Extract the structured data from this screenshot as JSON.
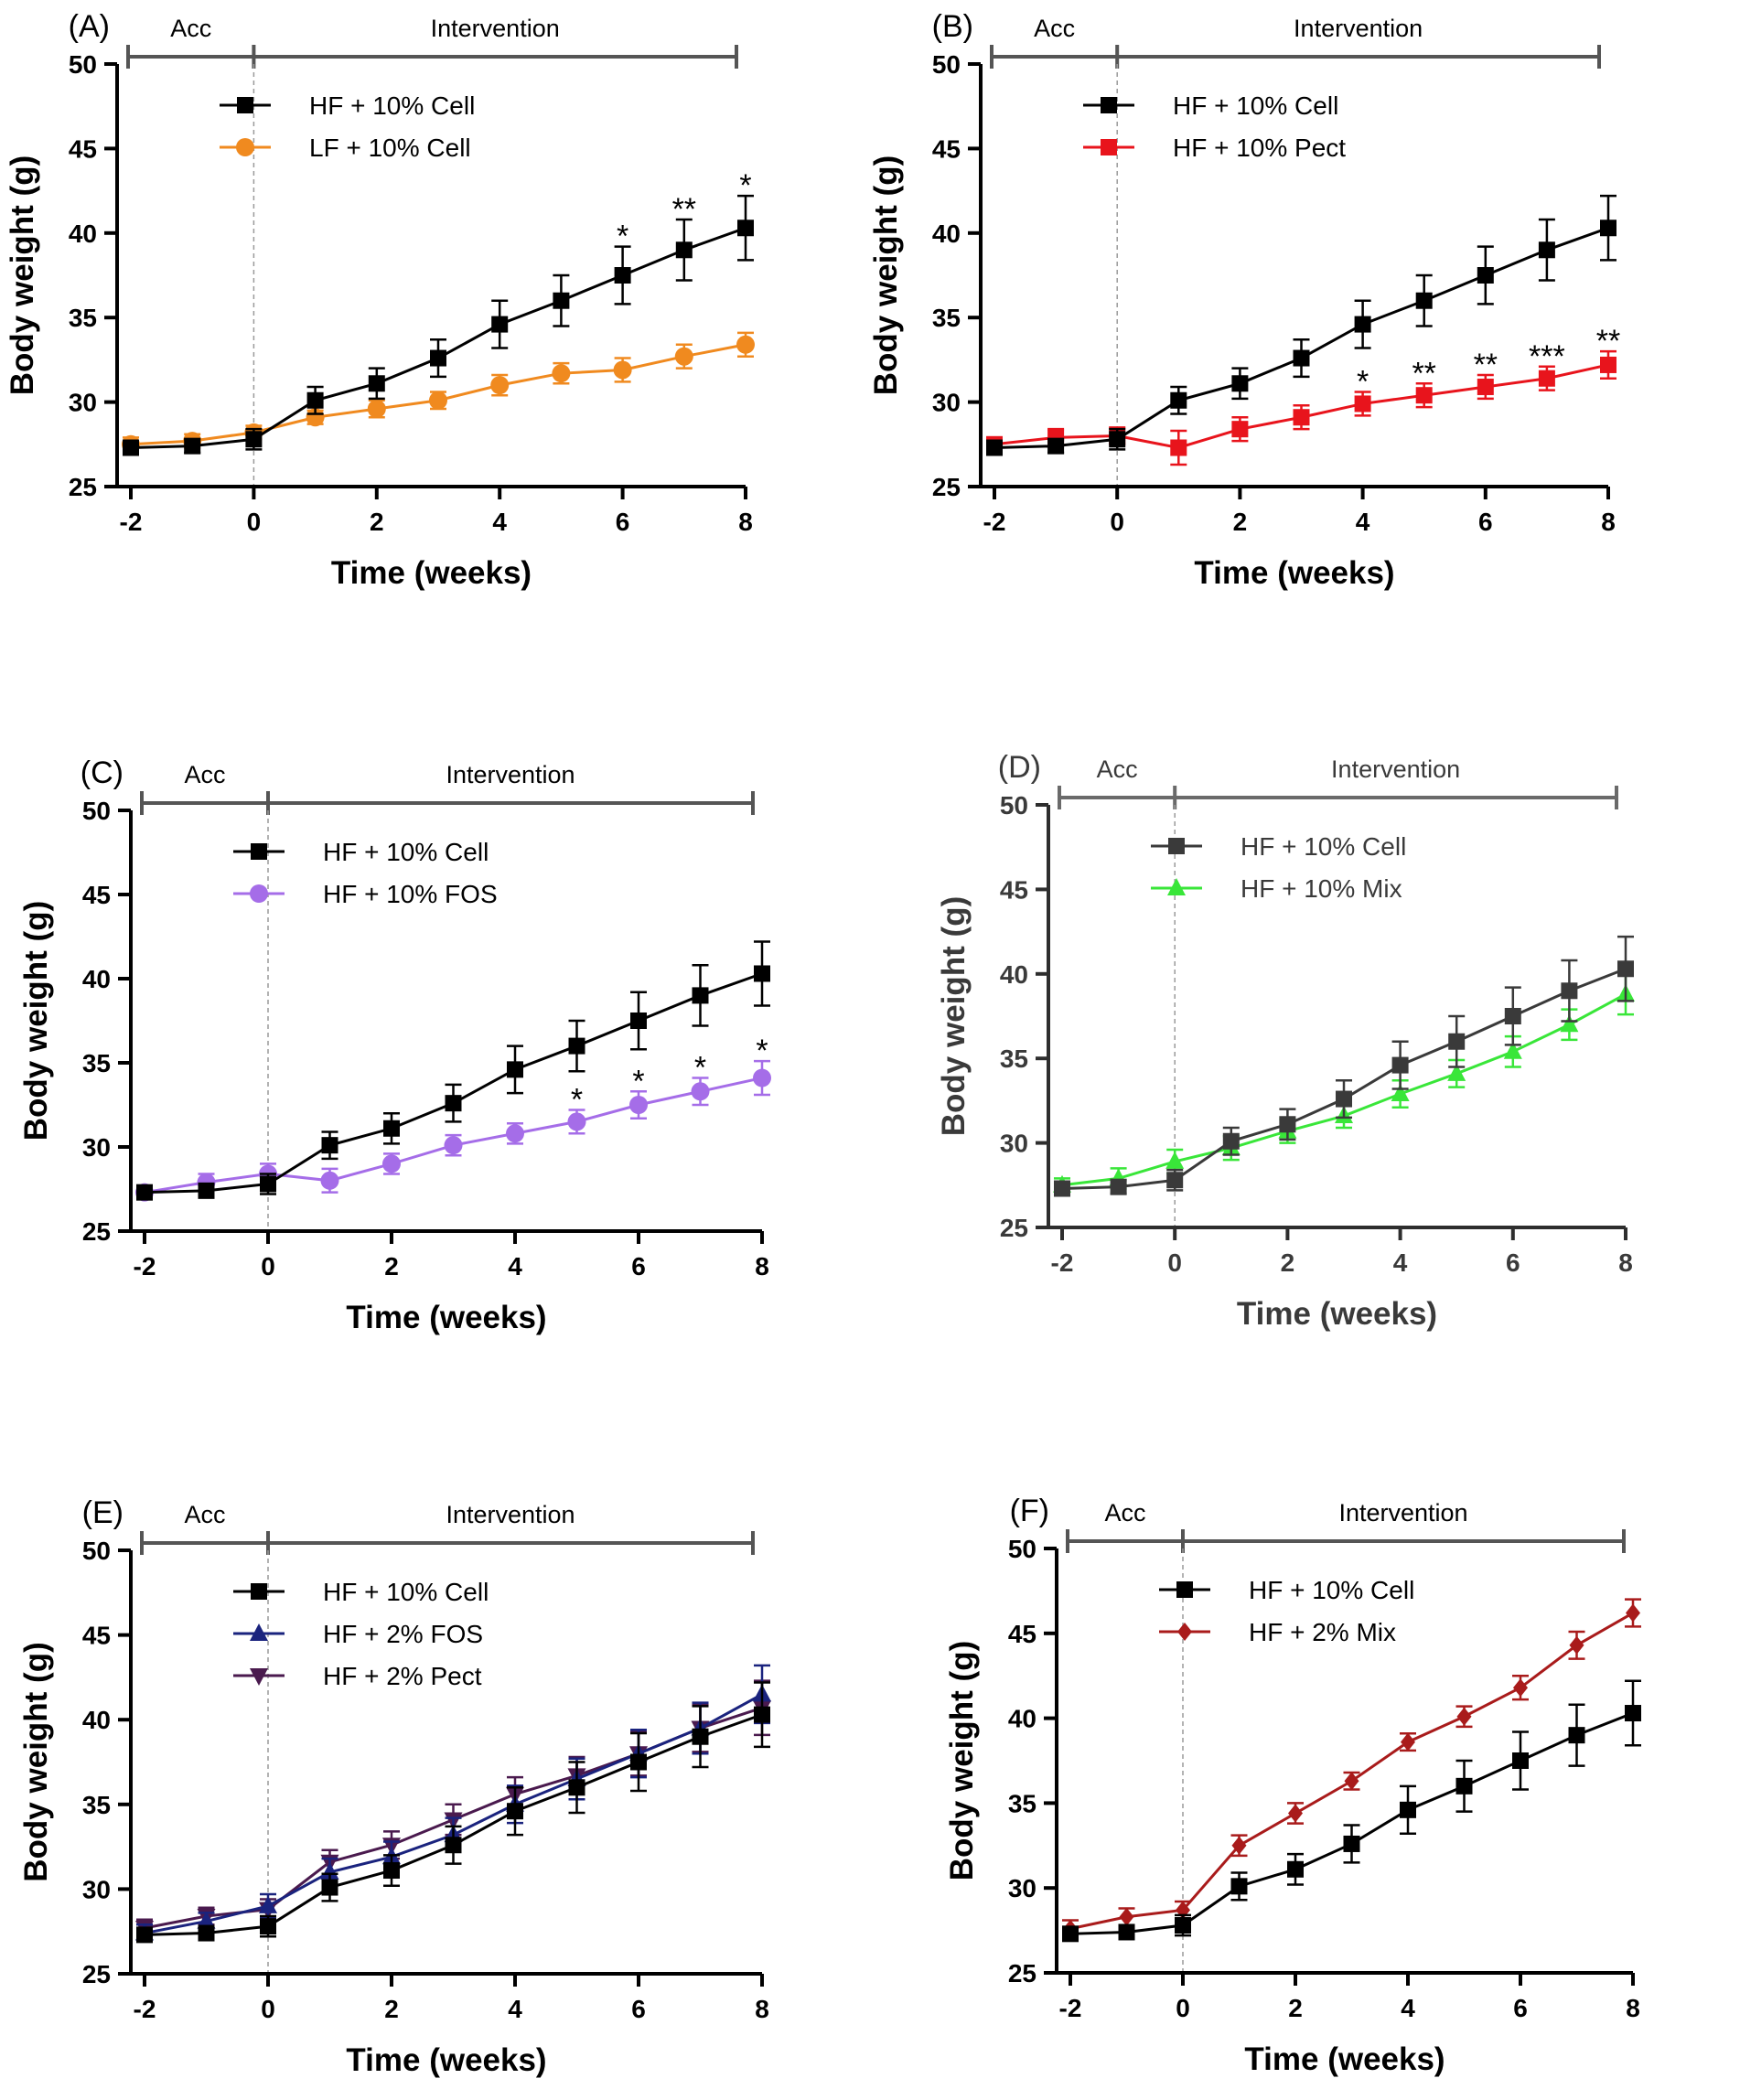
{
  "figure": {
    "x_ticks": [
      -2,
      0,
      2,
      4,
      6,
      8
    ],
    "y_ticks": [
      25,
      30,
      35,
      40,
      45,
      50
    ],
    "xlim": [
      -2,
      8
    ],
    "ylim": [
      25,
      50
    ],
    "acc_label": "Acc",
    "intervention_label": "Intervention",
    "xlabel": "Time (weeks)",
    "ylabel": "Body weight (g)"
  },
  "chart_data": [
    {
      "type": "line",
      "panel_label": "(A)",
      "title": "",
      "xlabel": "Time (weeks)",
      "ylabel": "Body weight (g)",
      "xlim": [
        -2,
        8
      ],
      "ylim": [
        25,
        50
      ],
      "highlighted": false,
      "x": [
        -2,
        -1,
        0,
        1,
        2,
        3,
        4,
        5,
        6,
        7,
        8
      ],
      "series": [
        {
          "name": "HF + 10% Cell",
          "color": "#000000",
          "marker": "square",
          "values": [
            27.3,
            27.4,
            27.8,
            30.1,
            31.1,
            32.6,
            34.6,
            36.0,
            37.5,
            39.0,
            40.3
          ],
          "errors": [
            0.4,
            0.4,
            0.6,
            0.8,
            0.9,
            1.1,
            1.4,
            1.5,
            1.7,
            1.8,
            1.9
          ]
        },
        {
          "name": "LF + 10% Cell",
          "color": "#f08a1f",
          "marker": "circle",
          "values": [
            27.5,
            27.7,
            28.2,
            29.1,
            29.6,
            30.1,
            31.0,
            31.7,
            31.9,
            32.7,
            33.4
          ],
          "errors": [
            0.4,
            0.4,
            0.4,
            0.4,
            0.5,
            0.5,
            0.6,
            0.6,
            0.7,
            0.7,
            0.7
          ]
        }
      ],
      "annotations": [
        {
          "x": 6,
          "text": "*"
        },
        {
          "x": 7,
          "text": "**"
        },
        {
          "x": 8,
          "text": "*"
        }
      ]
    },
    {
      "type": "line",
      "panel_label": "(B)",
      "title": "",
      "xlabel": "Time (weeks)",
      "ylabel": "Body weight (g)",
      "xlim": [
        -2,
        8
      ],
      "ylim": [
        25,
        50
      ],
      "highlighted": false,
      "x": [
        -2,
        -1,
        0,
        1,
        2,
        3,
        4,
        5,
        6,
        7,
        8
      ],
      "series": [
        {
          "name": "HF + 10% Cell",
          "color": "#000000",
          "marker": "square",
          "values": [
            27.3,
            27.4,
            27.8,
            30.1,
            31.1,
            32.6,
            34.6,
            36.0,
            37.5,
            39.0,
            40.3
          ],
          "errors": [
            0.4,
            0.4,
            0.6,
            0.8,
            0.9,
            1.1,
            1.4,
            1.5,
            1.7,
            1.8,
            1.9
          ]
        },
        {
          "name": "HF + 10% Pect",
          "color": "#e8141c",
          "marker": "square",
          "values": [
            27.5,
            27.9,
            28.0,
            27.3,
            28.4,
            29.1,
            29.9,
            30.4,
            30.9,
            31.4,
            32.2
          ],
          "errors": [
            0.4,
            0.5,
            0.5,
            1.0,
            0.7,
            0.7,
            0.7,
            0.7,
            0.7,
            0.7,
            0.8
          ]
        }
      ],
      "annotations": [
        {
          "x": 4,
          "text": "*"
        },
        {
          "x": 5,
          "text": "**"
        },
        {
          "x": 6,
          "text": "**"
        },
        {
          "x": 7,
          "text": "***"
        },
        {
          "x": 8,
          "text": "**"
        }
      ]
    },
    {
      "type": "line",
      "panel_label": "(C)",
      "title": "",
      "xlabel": "Time (weeks)",
      "ylabel": "Body weight (g)",
      "xlim": [
        -2,
        8
      ],
      "ylim": [
        25,
        50
      ],
      "highlighted": false,
      "x": [
        -2,
        -1,
        0,
        1,
        2,
        3,
        4,
        5,
        6,
        7,
        8
      ],
      "series": [
        {
          "name": "HF + 10% Cell",
          "color": "#000000",
          "marker": "square",
          "values": [
            27.3,
            27.4,
            27.8,
            30.1,
            31.1,
            32.6,
            34.6,
            36.0,
            37.5,
            39.0,
            40.3
          ],
          "errors": [
            0.4,
            0.4,
            0.6,
            0.8,
            0.9,
            1.1,
            1.4,
            1.5,
            1.7,
            1.8,
            1.9
          ]
        },
        {
          "name": "HF + 10% FOS",
          "color": "#a56de8",
          "marker": "circle",
          "values": [
            27.3,
            27.9,
            28.4,
            28.0,
            29.0,
            30.1,
            30.8,
            31.5,
            32.5,
            33.3,
            34.1
          ],
          "errors": [
            0.4,
            0.5,
            0.6,
            0.7,
            0.6,
            0.6,
            0.6,
            0.7,
            0.8,
            0.8,
            1.0
          ]
        }
      ],
      "annotations": [
        {
          "x": 5,
          "text": "*"
        },
        {
          "x": 6,
          "text": "*"
        },
        {
          "x": 7,
          "text": "*"
        },
        {
          "x": 8,
          "text": "*"
        }
      ]
    },
    {
      "type": "line",
      "panel_label": "(D)",
      "title": "",
      "xlabel": "Time (weeks)",
      "ylabel": "Body weight (g)",
      "xlim": [
        -2,
        8
      ],
      "ylim": [
        25,
        50
      ],
      "highlighted": true,
      "x": [
        -2,
        -1,
        0,
        1,
        2,
        3,
        4,
        5,
        6,
        7,
        8
      ],
      "series": [
        {
          "name": "HF + 10% Cell",
          "color": "#3a3a3a",
          "marker": "square",
          "values": [
            27.3,
            27.4,
            27.8,
            30.1,
            31.1,
            32.6,
            34.6,
            36.0,
            37.5,
            39.0,
            40.3
          ],
          "errors": [
            0.4,
            0.4,
            0.6,
            0.8,
            0.9,
            1.1,
            1.4,
            1.5,
            1.7,
            1.8,
            1.9
          ]
        },
        {
          "name": "HF + 10% Mix",
          "color": "#39e639",
          "marker": "triangle",
          "values": [
            27.5,
            27.9,
            28.9,
            29.7,
            30.7,
            31.6,
            32.9,
            34.1,
            35.4,
            37.0,
            38.8
          ],
          "errors": [
            0.4,
            0.6,
            0.7,
            0.7,
            0.7,
            0.7,
            0.8,
            0.8,
            0.9,
            0.9,
            1.2
          ]
        }
      ],
      "annotations": []
    },
    {
      "type": "line",
      "panel_label": "(E)",
      "title": "",
      "xlabel": "Time (weeks)",
      "ylabel": "Body weight (g)",
      "xlim": [
        -2,
        8
      ],
      "ylim": [
        25,
        50
      ],
      "highlighted": false,
      "x": [
        -2,
        -1,
        0,
        1,
        2,
        3,
        4,
        5,
        6,
        7,
        8
      ],
      "series": [
        {
          "name": "HF + 10% Cell",
          "color": "#000000",
          "marker": "square",
          "values": [
            27.3,
            27.4,
            27.8,
            30.1,
            31.1,
            32.6,
            34.6,
            36.0,
            37.5,
            39.0,
            40.3
          ],
          "errors": [
            0.4,
            0.4,
            0.6,
            0.8,
            0.9,
            1.1,
            1.4,
            1.5,
            1.7,
            1.8,
            1.9
          ]
        },
        {
          "name": "HF + 2% FOS",
          "color": "#1a237e",
          "marker": "triangle",
          "values": [
            27.4,
            28.1,
            29.0,
            31.0,
            31.9,
            33.2,
            35.0,
            36.5,
            38.0,
            39.5,
            41.5
          ],
          "errors": [
            0.5,
            0.5,
            0.7,
            0.8,
            0.9,
            1.0,
            1.1,
            1.2,
            1.4,
            1.5,
            1.7
          ]
        },
        {
          "name": "HF + 2% Pect",
          "color": "#4a1a4e",
          "marker": "triangle-down",
          "values": [
            27.7,
            28.4,
            28.8,
            31.6,
            32.6,
            34.1,
            35.6,
            36.7,
            38.0,
            39.5,
            40.7
          ],
          "errors": [
            0.5,
            0.5,
            0.6,
            0.7,
            0.8,
            0.9,
            1.0,
            1.1,
            1.3,
            1.4,
            1.6
          ]
        }
      ],
      "annotations": []
    },
    {
      "type": "line",
      "panel_label": "(F)",
      "title": "",
      "xlabel": "Time (weeks)",
      "ylabel": "Body weight (g)",
      "xlim": [
        -2,
        8
      ],
      "ylim": [
        25,
        50
      ],
      "highlighted": false,
      "x": [
        -2,
        -1,
        0,
        1,
        2,
        3,
        4,
        5,
        6,
        7,
        8
      ],
      "series": [
        {
          "name": "HF + 10% Cell",
          "color": "#000000",
          "marker": "square",
          "values": [
            27.3,
            27.4,
            27.8,
            30.1,
            31.1,
            32.6,
            34.6,
            36.0,
            37.5,
            39.0,
            40.3
          ],
          "errors": [
            0.4,
            0.4,
            0.6,
            0.8,
            0.9,
            1.1,
            1.4,
            1.5,
            1.7,
            1.8,
            1.9
          ]
        },
        {
          "name": "HF + 2% Mix",
          "color": "#a91b1b",
          "marker": "diamond",
          "values": [
            27.6,
            28.3,
            28.7,
            32.5,
            34.4,
            36.3,
            38.6,
            40.1,
            41.8,
            44.3,
            46.2
          ],
          "errors": [
            0.5,
            0.5,
            0.5,
            0.6,
            0.6,
            0.5,
            0.5,
            0.6,
            0.7,
            0.8,
            0.8
          ]
        }
      ],
      "annotations": []
    }
  ]
}
